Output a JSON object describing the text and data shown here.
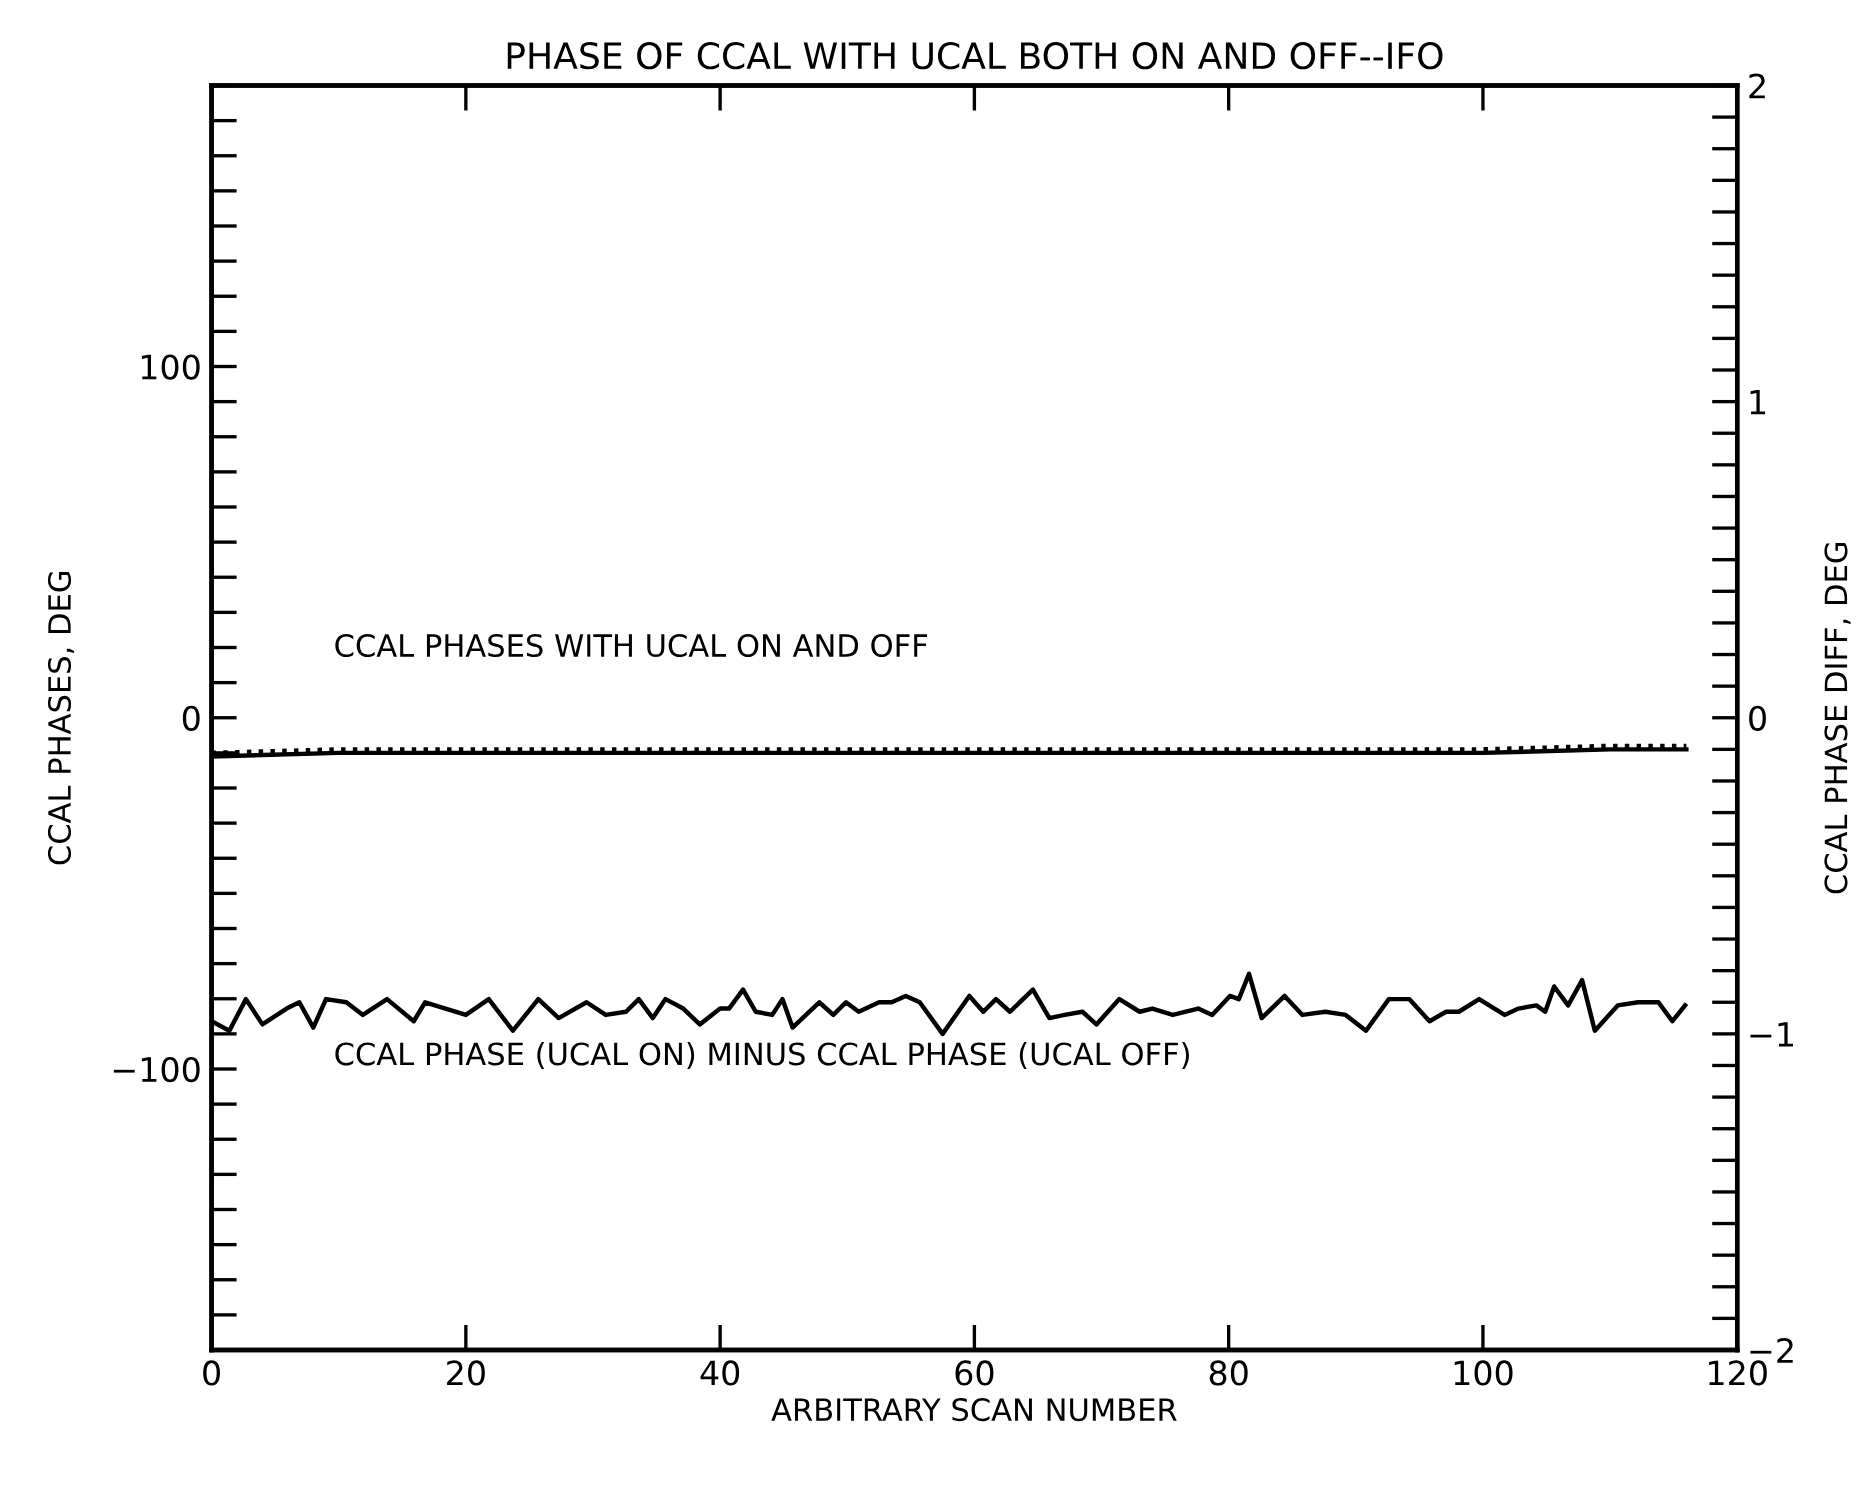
{
  "chart_data": {
    "type": "line",
    "title": "PHASE OF CCAL WITH UCAL BOTH ON AND OFF--IFO",
    "xlabel": "ARBITRARY SCAN NUMBER",
    "ylabel": "CCAL PHASES, DEG",
    "y2label": "CCAL PHASE DIFF, DEG",
    "xlim": [
      0,
      120
    ],
    "xticks": [
      0,
      20,
      40,
      60,
      80,
      100,
      120
    ],
    "ylim": [
      -180,
      180
    ],
    "yticks": [
      {
        "value": -180,
        "label": null
      },
      {
        "value": -170,
        "label": null
      },
      {
        "value": -160,
        "label": null
      },
      {
        "value": -150,
        "label": null
      },
      {
        "value": -140,
        "label": null
      },
      {
        "value": -130,
        "label": null
      },
      {
        "value": -120,
        "label": null
      },
      {
        "value": -110,
        "label": null
      },
      -100,
      {
        "value": -90,
        "label": null
      },
      {
        "value": -80,
        "label": null
      },
      {
        "value": -70,
        "label": null
      },
      {
        "value": -60,
        "label": null
      },
      {
        "value": -50,
        "label": null
      },
      {
        "value": -40,
        "label": null
      },
      {
        "value": -30,
        "label": null
      },
      {
        "value": -20,
        "label": null
      },
      {
        "value": -10,
        "label": null
      },
      0,
      {
        "value": 10,
        "label": null
      },
      {
        "value": 20,
        "label": null
      },
      {
        "value": 30,
        "label": null
      },
      {
        "value": 40,
        "label": null
      },
      {
        "value": 50,
        "label": null
      },
      {
        "value": 60,
        "label": null
      },
      {
        "value": 70,
        "label": null
      },
      {
        "value": 80,
        "label": null
      },
      {
        "value": 90,
        "label": null
      },
      100,
      {
        "value": 110,
        "label": null
      },
      {
        "value": 120,
        "label": null
      },
      {
        "value": 130,
        "label": null
      },
      {
        "value": 140,
        "label": null
      },
      {
        "value": 150,
        "label": null
      },
      {
        "value": 160,
        "label": null
      },
      {
        "value": 170,
        "label": null
      },
      {
        "value": 180,
        "label": null
      }
    ],
    "y2lim": [
      -2,
      2
    ],
    "y2ticks": [
      -2,
      {
        "value": -1.9,
        "label": null
      },
      {
        "value": -1.8,
        "label": null
      },
      {
        "value": -1.7,
        "label": null
      },
      {
        "value": -1.6,
        "label": null
      },
      {
        "value": -1.5,
        "label": null
      },
      {
        "value": -1.4,
        "label": null
      },
      {
        "value": -1.3,
        "label": null
      },
      {
        "value": -1.2,
        "label": null
      },
      {
        "value": -1.1,
        "label": null
      },
      -1,
      {
        "value": -0.9,
        "label": null
      },
      {
        "value": -0.8,
        "label": null
      },
      {
        "value": -0.7,
        "label": null
      },
      {
        "value": -0.6,
        "label": null
      },
      {
        "value": -0.5,
        "label": null
      },
      {
        "value": -0.4,
        "label": null
      },
      {
        "value": -0.3,
        "label": null
      },
      {
        "value": -0.2,
        "label": null
      },
      {
        "value": -0.1,
        "label": null
      },
      0,
      {
        "value": 0.1,
        "label": null
      },
      {
        "value": 0.2,
        "label": null
      },
      {
        "value": 0.3,
        "label": null
      },
      {
        "value": 0.4,
        "label": null
      },
      {
        "value": 0.5,
        "label": null
      },
      {
        "value": 0.6,
        "label": null
      },
      {
        "value": 0.7,
        "label": null
      },
      {
        "value": 0.8,
        "label": null
      },
      {
        "value": 0.9,
        "label": null
      },
      1,
      {
        "value": 1.1,
        "label": null
      },
      {
        "value": 1.2,
        "label": null
      },
      {
        "value": 1.3,
        "label": null
      },
      {
        "value": 1.4,
        "label": null
      },
      {
        "value": 1.5,
        "label": null
      },
      {
        "value": 1.6,
        "label": null
      },
      {
        "value": 1.7,
        "label": null
      },
      {
        "value": 1.8,
        "label": null
      },
      {
        "value": 1.9,
        "label": null
      },
      2
    ],
    "grid": false,
    "legend": false,
    "series": [
      {
        "color": "#000000",
        "line_style": "solid",
        "x": [
          0,
          10,
          20,
          30,
          40,
          50,
          60,
          70,
          80,
          90,
          100,
          110,
          116
        ],
        "values": [
          -11,
          -10,
          -10,
          -10,
          -10,
          -10,
          -10,
          -10,
          -10,
          -10,
          -10,
          -9,
          -9
        ]
      },
      {
        "color": "#000000",
        "line_style": "dotted",
        "x": [
          0,
          10,
          20,
          30,
          40,
          50,
          60,
          70,
          80,
          90,
          100,
          110,
          116
        ],
        "values": [
          -10,
          -9,
          -9,
          -9,
          -9,
          -9,
          -9,
          -9,
          -9,
          -9,
          -9,
          -8,
          -8
        ]
      },
      {
        "color": "#000000",
        "line_style": "solid",
        "axis": "y2",
        "x": [
          0,
          1.4,
          2.7,
          4.0,
          5.9,
          6.9,
          8.0,
          9.0,
          10.6,
          11.9,
          13.8,
          15.9,
          16.8,
          18.4,
          20.0,
          21.8,
          23.7,
          25.7,
          27.3,
          29.5,
          31.0,
          32.6,
          33.6,
          34.7,
          35.7,
          37.1,
          38.4,
          40.0,
          40.7,
          41.8,
          42.8,
          44.1,
          44.9,
          45.7,
          47.8,
          48.9,
          49.9,
          50.9,
          52.5,
          53.5,
          54.6,
          55.7,
          57.5,
          59.6,
          60.7,
          61.7,
          62.8,
          64.6,
          65.9,
          67.1,
          68.5,
          69.6,
          71.4,
          73.0,
          74.0,
          75.6,
          77.6,
          78.7,
          80.1,
          80.8,
          81.6,
          82.6,
          84.4,
          85.8,
          87.6,
          89.2,
          90.8,
          92.6,
          94.2,
          95.8,
          97.1,
          98.1,
          99.7,
          101.7,
          102.8,
          104.2,
          104.9,
          105.6,
          106.7,
          107.8,
          108.8,
          110.6,
          112.2,
          113.8,
          114.9,
          115.9
        ],
        "values": [
          -0.96,
          -0.99,
          -0.89,
          -0.97,
          -0.92,
          -0.9,
          -0.98,
          -0.89,
          -0.9,
          -0.94,
          -0.89,
          -0.96,
          -0.9,
          -0.92,
          -0.94,
          -0.89,
          -0.99,
          -0.89,
          -0.95,
          -0.9,
          -0.94,
          -0.93,
          -0.89,
          -0.95,
          -0.89,
          -0.92,
          -0.97,
          -0.92,
          -0.92,
          -0.86,
          -0.93,
          -0.94,
          -0.89,
          -0.98,
          -0.9,
          -0.94,
          -0.9,
          -0.93,
          -0.9,
          -0.9,
          -0.88,
          -0.9,
          -1.0,
          -0.88,
          -0.93,
          -0.89,
          -0.93,
          -0.86,
          -0.95,
          -0.94,
          -0.93,
          -0.97,
          -0.89,
          -0.93,
          -0.92,
          -0.94,
          -0.92,
          -0.94,
          -0.88,
          -0.89,
          -0.81,
          -0.95,
          -0.88,
          -0.94,
          -0.93,
          -0.94,
          -0.99,
          -0.89,
          -0.89,
          -0.96,
          -0.93,
          -0.93,
          -0.89,
          -0.94,
          -0.92,
          -0.91,
          -0.93,
          -0.85,
          -0.91,
          -0.83,
          -0.99,
          -0.91,
          -0.9,
          -0.9,
          -0.96,
          -0.91
        ]
      }
    ],
    "annotations": [
      "CCAL PHASES WITH UCAL ON AND OFF",
      "CCAL PHASE (UCAL ON) MINUS CCAL PHASE (UCAL OFF)"
    ]
  }
}
